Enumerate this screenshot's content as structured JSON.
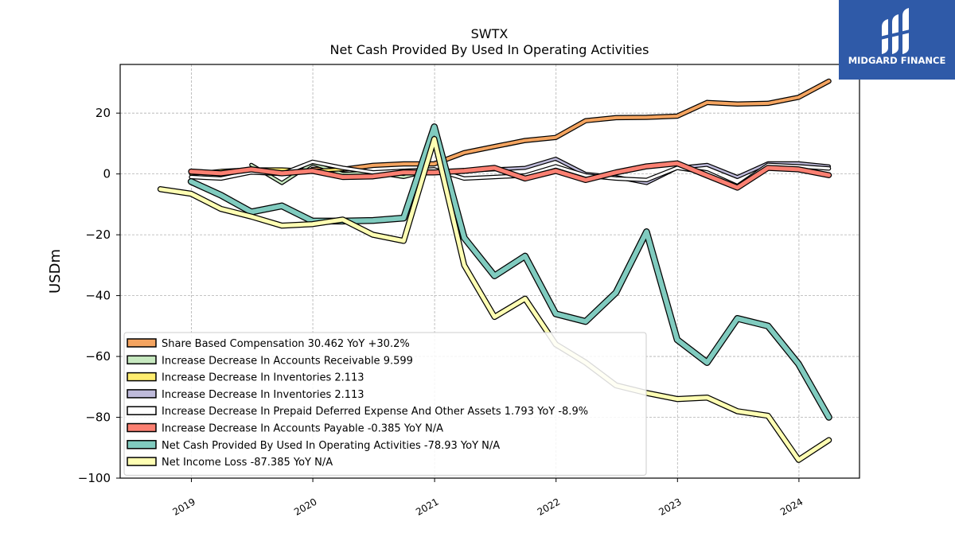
{
  "brand": {
    "name": "MIDGARD FINANCE",
    "bg": "#2f5aa8"
  },
  "chart_data": {
    "type": "line",
    "title": "SWTX",
    "subtitle": "Net Cash Provided By Used In Operating Activities",
    "xlabel": "",
    "ylabel": "USDm",
    "ylim": [
      -100,
      36
    ],
    "xlim": [
      "2018-06-01",
      "2024-07-01"
    ],
    "yticks": [
      20,
      0,
      -20,
      -40,
      -60,
      -80,
      -100
    ],
    "ytick_labels": [
      "20",
      "0",
      "−20",
      "−40",
      "−60",
      "−80",
      "−100"
    ],
    "xticks": [
      "2019-01-01",
      "2020-01-01",
      "2021-01-01",
      "2022-01-01",
      "2023-01-01",
      "2024-01-01"
    ],
    "xtick_labels": [
      "2019",
      "2020",
      "2021",
      "2022",
      "2023",
      "2024"
    ],
    "grid": true,
    "legend_position": "lower-left",
    "series": [
      {
        "name": "Share Based Compensation",
        "legend_label": "Share Based Compensation  30.462 YoY +30.2%",
        "color": "#f4a460",
        "x": [
          "2019-12-31",
          "2020-03-31",
          "2020-06-30",
          "2020-09-30",
          "2020-12-31",
          "2021-03-31",
          "2021-06-30",
          "2021-09-30",
          "2021-12-31",
          "2022-03-31",
          "2022-06-30",
          "2022-09-30",
          "2022-12-31",
          "2023-03-31",
          "2023-06-30",
          "2023-09-30",
          "2023-12-31",
          "2024-03-31"
        ],
        "y": [
          1.5,
          1.5,
          2.8,
          3.3,
          3.3,
          7.0,
          9.0,
          11.0,
          12.0,
          17.5,
          18.5,
          18.6,
          19.0,
          23.5,
          23.0,
          23.2,
          25.2,
          30.5
        ]
      },
      {
        "name": "Increase Decrease In Accounts Receivable",
        "legend_label": "Increase Decrease In Accounts Receivable  9.599",
        "color": "#c7e9c0",
        "x": [
          "2019-06-30",
          "2019-09-30",
          "2019-12-31",
          "2020-03-31",
          "2020-06-30",
          "2020-09-30",
          "2020-12-31"
        ],
        "y": [
          3.0,
          -3.0,
          3.5,
          0.0,
          0.5,
          -1.0,
          1.5
        ]
      },
      {
        "name": "Increase Decrease In Inventories",
        "legend_label": "Increase Decrease In Inventories  2.113",
        "color": "#ffed6f",
        "x": [
          "2018-12-31",
          "2019-03-31",
          "2019-06-30",
          "2019-09-30",
          "2019-12-31",
          "2020-03-31"
        ],
        "y": [
          0.0,
          1.0,
          1.5,
          1.5,
          1.0,
          1.5
        ]
      },
      {
        "name": "Increase Decrease In Inventories",
        "legend_label": "Increase Decrease In Inventories  2.113",
        "color": "#bebada",
        "x": [
          "2021-03-31",
          "2021-06-30",
          "2021-09-30",
          "2021-12-31",
          "2022-03-31",
          "2022-06-30",
          "2022-09-30",
          "2022-12-31",
          "2023-03-31",
          "2023-06-30",
          "2023-09-30",
          "2023-12-31",
          "2024-03-31"
        ],
        "y": [
          1.0,
          1.5,
          2.0,
          5.0,
          0.0,
          -1.0,
          -3.0,
          2.0,
          3.0,
          -1.0,
          3.5,
          3.5,
          2.5
        ]
      },
      {
        "name": "Increase Decrease In Prepaid Deferred Expense And Other Assets",
        "legend_label": "Increase Decrease In Prepaid Deferred Expense And Other Assets  1.793 YoY -8.9%",
        "color": "#ffffff",
        "x": [
          "2018-12-31",
          "2019-03-31",
          "2019-06-30",
          "2019-09-30",
          "2019-12-31",
          "2020-03-31",
          "2020-06-30",
          "2020-09-30",
          "2020-12-31",
          "2021-03-31",
          "2021-06-30",
          "2021-09-30",
          "2021-12-31",
          "2022-03-31",
          "2022-06-30",
          "2022-09-30",
          "2022-12-31",
          "2023-03-31",
          "2023-06-30",
          "2023-09-30",
          "2023-12-31",
          "2024-03-31"
        ],
        "y": [
          -1.0,
          -1.5,
          0.5,
          0.0,
          4.0,
          2.0,
          0.5,
          1.0,
          1.5,
          -1.5,
          -1.0,
          -0.5,
          2.5,
          -0.5,
          -1.5,
          -2.0,
          2.0,
          0.5,
          -4.0,
          3.0,
          2.5,
          1.8
        ]
      },
      {
        "name": "Increase Decrease In Accounts Payable",
        "legend_label": "Increase Decrease In Accounts Payable  -0.385 YoY N/A",
        "color": "#fb8072",
        "x": [
          "2018-12-31",
          "2019-03-31",
          "2019-06-30",
          "2019-09-30",
          "2019-12-31",
          "2020-03-31",
          "2020-06-30",
          "2020-09-30",
          "2020-12-31",
          "2021-03-31",
          "2021-06-30",
          "2021-09-30",
          "2021-12-31",
          "2022-03-31",
          "2022-06-30",
          "2022-09-30",
          "2022-12-31",
          "2023-03-31",
          "2023-06-30",
          "2023-09-30",
          "2023-12-31",
          "2024-03-31"
        ],
        "y": [
          0.8,
          0.2,
          1.5,
          0.2,
          1.0,
          -1.0,
          -0.8,
          0.5,
          0.5,
          1.0,
          2.0,
          -1.5,
          1.0,
          -2.0,
          0.5,
          2.5,
          3.5,
          -0.5,
          -4.5,
          2.0,
          1.5,
          -0.4
        ]
      },
      {
        "name": "Net Cash Provided By Used In Operating Activities",
        "legend_label": "Net Cash Provided By Used In Operating Activities  -78.93 YoY N/A",
        "color": "#80cbbf",
        "x": [
          "2018-12-31",
          "2019-03-31",
          "2019-06-30",
          "2019-09-30",
          "2019-12-31",
          "2020-03-31",
          "2020-06-30",
          "2020-09-30",
          "2020-12-31",
          "2021-03-31",
          "2021-06-30",
          "2021-09-30",
          "2021-12-31",
          "2022-03-31",
          "2022-06-30",
          "2022-09-30",
          "2022-12-31",
          "2023-03-31",
          "2023-06-30",
          "2023-09-30",
          "2023-12-31",
          "2024-03-31"
        ],
        "y": [
          -2.5,
          -7.0,
          -12.5,
          -10.5,
          -15.5,
          -15.5,
          -15.3,
          -14.5,
          15.5,
          -21.0,
          -33.5,
          -27.0,
          -46.0,
          -48.5,
          -39.0,
          -19.0,
          -54.5,
          -62.0,
          -47.5,
          -50.0,
          -62.5,
          -80.0
        ]
      },
      {
        "name": "Net Income Loss",
        "legend_label": "Net Income Loss  -87.385 YoY N/A",
        "color": "#ffffb3",
        "x": [
          "2018-09-30",
          "2018-12-31",
          "2019-03-31",
          "2019-06-30",
          "2019-09-30",
          "2019-12-31",
          "2020-03-31",
          "2020-06-30",
          "2020-09-30",
          "2020-12-31",
          "2021-03-31",
          "2021-06-30",
          "2021-09-30",
          "2021-12-31",
          "2022-03-31",
          "2022-06-30",
          "2022-09-30",
          "2022-12-31",
          "2023-03-31",
          "2023-06-30",
          "2023-09-30",
          "2023-12-31",
          "2024-03-31"
        ],
        "y": [
          -5.0,
          -6.5,
          -11.5,
          -14.0,
          -17.0,
          -16.5,
          -15.0,
          -20.0,
          -22.0,
          11.5,
          -30.0,
          -47.0,
          -41.0,
          -56.0,
          -62.0,
          -69.5,
          -72.0,
          -74.0,
          -73.5,
          -78.0,
          -79.5,
          -94.0,
          -87.5
        ]
      }
    ]
  }
}
